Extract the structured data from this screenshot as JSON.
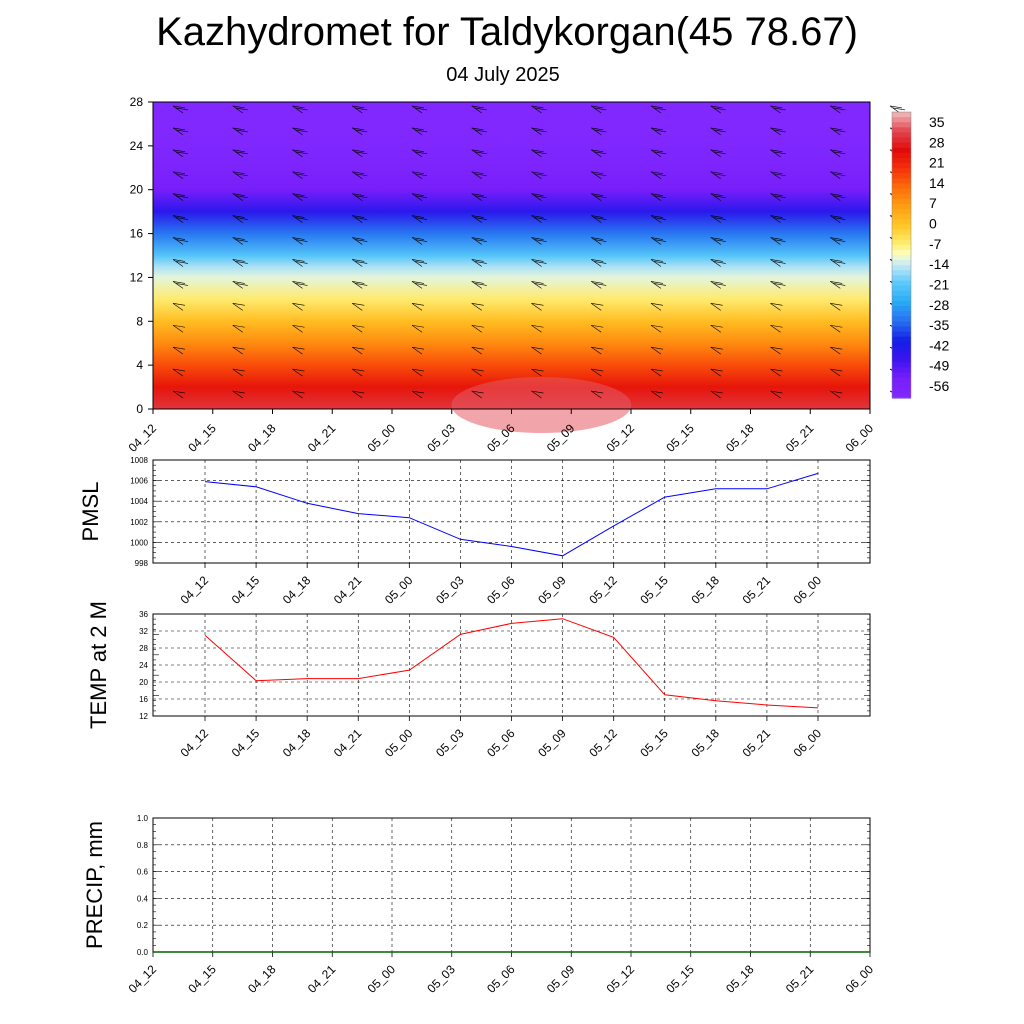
{
  "header": {
    "title": "Kazhydromet for Taldykorgan(45 78.67)",
    "subtitle": "04 July 2025"
  },
  "chart_data": [
    {
      "type": "heatmap",
      "xlabel": "",
      "ylabel": "",
      "x_categories": [
        "04_12",
        "04_15",
        "04_18",
        "04_21",
        "05_00",
        "05_03",
        "05_06",
        "05_09",
        "05_12",
        "05_15",
        "05_18",
        "05_21",
        "06_00"
      ],
      "ylim": [
        0,
        28
      ],
      "y_ticks": [
        0,
        4,
        8,
        12,
        16,
        20,
        24,
        28
      ],
      "colorbar_labels": [
        "35",
        "28",
        "21",
        "14",
        "7",
        "0",
        "-7",
        "-14",
        "-21",
        "-28",
        "-35",
        "-42",
        "-49",
        "-56"
      ],
      "colorbar_range": [
        -63,
        42
      ],
      "grid": false,
      "overlay": "wind barbs",
      "description_values": {
        "levels_km": [
          0,
          2,
          4,
          6,
          8,
          10,
          12,
          13,
          14,
          16,
          18,
          20,
          22,
          24,
          26,
          28
        ],
        "values_at_0512": [
          33,
          26,
          18,
          10,
          2,
          -6,
          -12,
          -16,
          -22,
          -34,
          -46,
          -56,
          -60,
          -62,
          -63,
          -64
        ]
      }
    },
    {
      "type": "line",
      "ylabel": "PMSL",
      "x": [
        "04_12",
        "04_15",
        "04_18",
        "04_21",
        "05_00",
        "05_03",
        "05_06",
        "05_09",
        "05_12",
        "05_15",
        "05_18",
        "05_21",
        "06_00"
      ],
      "series": [
        {
          "values": [
            1005.9,
            1005.4,
            1003.8,
            1002.8,
            1002.4,
            1000.3,
            999.6,
            998.7,
            1001.6,
            1004.4,
            1005.2,
            1005.2,
            1006.7
          ]
        }
      ],
      "ylim": [
        998,
        1008
      ],
      "y_ticks": [
        998,
        1000,
        1002,
        1004,
        1006,
        1008
      ],
      "grid": true,
      "line_color": "#0000ff"
    },
    {
      "type": "line",
      "ylabel": "TEMP at 2 M",
      "x": [
        "04_12",
        "04_15",
        "04_18",
        "04_21",
        "05_00",
        "05_03",
        "05_06",
        "05_09",
        "05_12",
        "05_15",
        "05_18",
        "05_21",
        "06_00"
      ],
      "series": [
        {
          "values": [
            31.0,
            20.3,
            20.8,
            20.8,
            22.8,
            31.2,
            33.8,
            34.9,
            30.5,
            17.0,
            15.6,
            14.6,
            13.9
          ]
        }
      ],
      "ylim": [
        12,
        36
      ],
      "y_ticks": [
        12,
        16,
        20,
        24,
        28,
        32,
        36
      ],
      "grid": true,
      "line_color": "#ff0000"
    },
    {
      "type": "line",
      "ylabel": "PRECIP, mm",
      "x": [
        "04_12",
        "04_15",
        "04_18",
        "04_21",
        "05_00",
        "05_03",
        "05_06",
        "05_09",
        "05_12",
        "05_15",
        "05_18",
        "05_21",
        "06_00"
      ],
      "series": [
        {
          "values": [
            0,
            0,
            0,
            0,
            0,
            0,
            0,
            0,
            0,
            0,
            0,
            0,
            0
          ]
        }
      ],
      "ylim": [
        0.0,
        1.0
      ],
      "y_ticks": [
        "0.0",
        "0.2",
        "0.4",
        "0.6",
        "0.8",
        "1.0"
      ],
      "grid": true,
      "line_color": "#006400"
    }
  ]
}
